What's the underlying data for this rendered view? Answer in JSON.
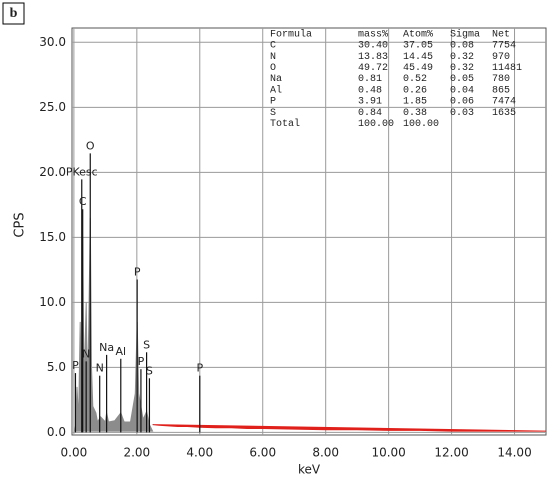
{
  "panel_label": "b",
  "chart_data": {
    "type": "spectrum",
    "xlabel": "keV",
    "ylabel": "CPS",
    "xlim": [
      -0.06,
      15.0
    ],
    "ylim": [
      -0.2,
      31.1
    ],
    "xticks": [
      {
        "value": 0,
        "label": "0.00"
      },
      {
        "value": 2,
        "label": "2.00"
      },
      {
        "value": 4,
        "label": "4.00"
      },
      {
        "value": 6,
        "label": "6.00"
      },
      {
        "value": 8,
        "label": "8.00"
      },
      {
        "value": 10,
        "label": "10.00"
      },
      {
        "value": 12,
        "label": "12.00"
      },
      {
        "value": 14,
        "label": "14.00"
      }
    ],
    "yticks": [
      {
        "value": 0,
        "label": "0.0"
      },
      {
        "value": 5,
        "label": "5.0"
      },
      {
        "value": 10,
        "label": "10.0"
      },
      {
        "value": 15,
        "label": "15.0"
      },
      {
        "value": 20,
        "label": "20.0"
      },
      {
        "value": 25,
        "label": "25.0"
      },
      {
        "value": 30,
        "label": "30.0"
      }
    ],
    "grid": true,
    "series": [
      {
        "color": "#8c8c8c",
        "x": [
          0.02,
          0.05,
          0.1,
          0.15,
          0.2,
          0.25,
          0.28,
          0.32,
          0.36,
          0.39,
          0.43,
          0.47,
          0.52,
          0.56,
          0.6,
          0.7,
          0.75,
          0.85,
          1.0,
          1.04,
          1.1,
          1.3,
          1.49,
          1.6,
          1.8,
          1.95,
          2.01,
          2.06,
          2.13,
          2.2,
          2.31,
          2.4,
          2.5
        ],
        "values": [
          0.1,
          0.5,
          3.5,
          1.0,
          8.5,
          2.0,
          15.0,
          3.0,
          7.0,
          10.0,
          3.0,
          8.0,
          16.5,
          5.0,
          2.0,
          1.5,
          0.8,
          1.2,
          0.8,
          1.5,
          0.8,
          0.9,
          1.5,
          0.8,
          0.8,
          3.0,
          8.5,
          3.0,
          2.0,
          1.0,
          1.6,
          0.6,
          0.1
        ]
      },
      {
        "color": "#e0201b",
        "x": [
          2.5,
          2.7,
          3.0,
          3.3,
          3.6,
          4.0,
          4.5,
          5.0,
          5.5,
          6.0,
          7.0,
          8.0,
          9.0,
          10.0,
          11.0,
          12.0,
          13.0,
          14.0,
          15.0
        ],
        "values": [
          0.6,
          0.55,
          0.5,
          0.45,
          0.45,
          0.4,
          0.35,
          0.35,
          0.3,
          0.3,
          0.25,
          0.2,
          0.2,
          0.15,
          0.15,
          0.1,
          0.1,
          0.1,
          0.1
        ]
      }
    ],
    "annotations": [
      {
        "text": "PKesc",
        "x": 0.25,
        "y": 20.0
      },
      {
        "text": "O",
        "x": 0.52,
        "y": 22.0
      },
      {
        "text": "C",
        "x": 0.28,
        "y": 17.7
      },
      {
        "text": "P",
        "x": 2.01,
        "y": 12.3
      },
      {
        "text": "S",
        "x": 2.31,
        "y": 6.7
      },
      {
        "text": "Na",
        "x": 1.04,
        "y": 6.5
      },
      {
        "text": "Al",
        "x": 1.49,
        "y": 6.2
      },
      {
        "text": "N",
        "x": 0.39,
        "y": 6.0
      },
      {
        "text": "P",
        "x": 0.05,
        "y": 5.1
      },
      {
        "text": "N",
        "x": 0.82,
        "y": 4.9
      },
      {
        "text": "P",
        "x": 2.13,
        "y": 5.4
      },
      {
        "text": "S",
        "x": 2.4,
        "y": 4.7
      },
      {
        "text": "P",
        "x": 4.0,
        "y": 4.9
      }
    ],
    "table": {
      "header": [
        "Formula",
        "mass%",
        "Atom%",
        "Sigma",
        "Net"
      ],
      "rows": [
        [
          "C",
          "30.40",
          "37.05",
          "0.08",
          "7754"
        ],
        [
          "N",
          "13.83",
          "14.45",
          "0.32",
          "970"
        ],
        [
          "O",
          "49.72",
          "45.49",
          "0.32",
          "11481"
        ],
        [
          "Na",
          "0.81",
          "0.52",
          "0.05",
          "780"
        ],
        [
          "Al",
          "0.48",
          "0.26",
          "0.04",
          "865"
        ],
        [
          "P",
          "3.91",
          "1.85",
          "0.06",
          "7474"
        ],
        [
          "S",
          "0.84",
          "0.38",
          "0.03",
          "1635"
        ],
        [
          "Total",
          "100.00",
          "100.00"
        ]
      ]
    }
  }
}
